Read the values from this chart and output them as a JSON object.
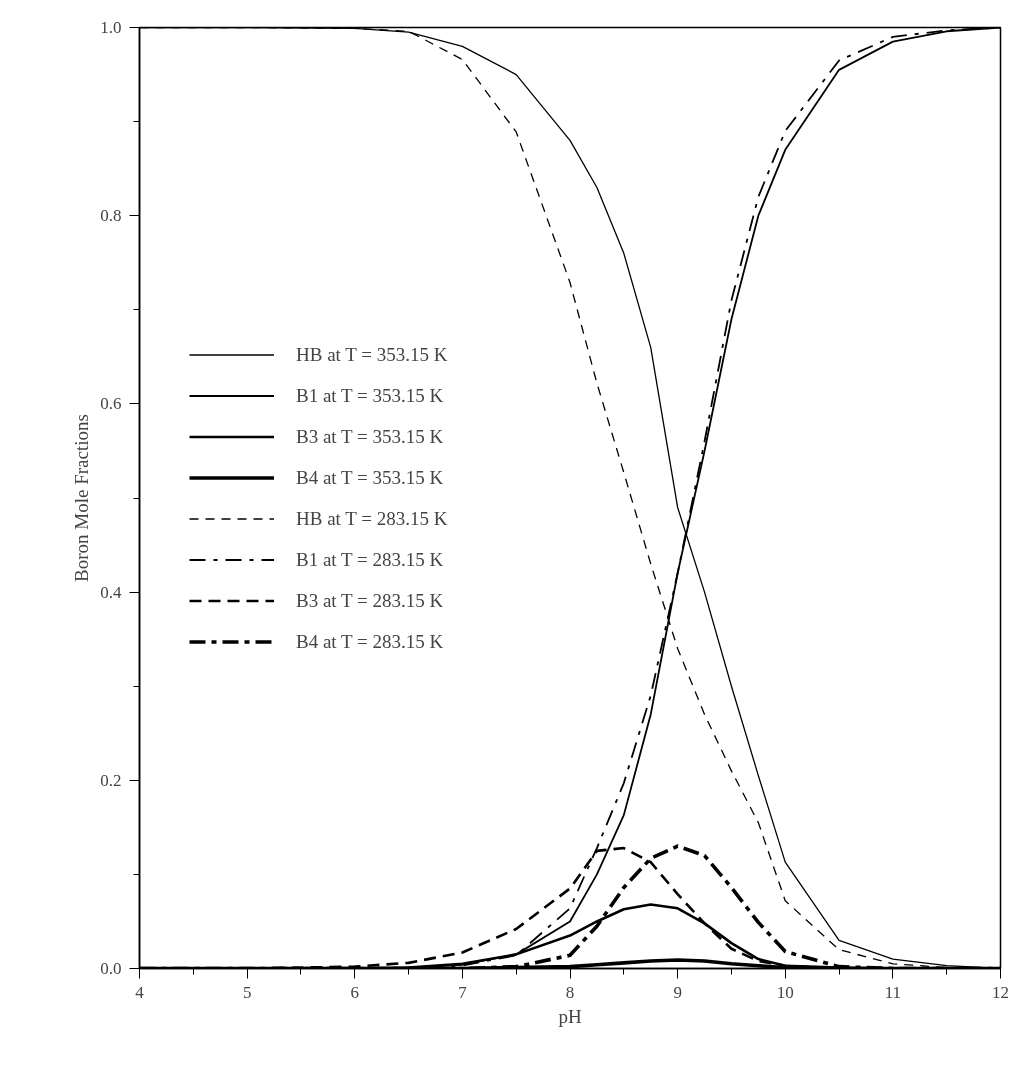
{
  "chart_data": {
    "type": "line",
    "xlabel": "pH",
    "ylabel": "Boron Mole Fractions",
    "x": [
      4,
      5,
      6,
      6.5,
      7,
      7.5,
      8,
      8.25,
      8.5,
      8.75,
      9,
      9.25,
      9.5,
      9.75,
      10,
      10.5,
      11,
      11.5,
      12
    ],
    "series": [
      {
        "name": "HB at T = 353.15 K",
        "color": "#000000",
        "line_style": "solid",
        "values": [
          1,
          1,
          0.999,
          0.995,
          0.98,
          0.95,
          0.88,
          0.83,
          0.76,
          0.66,
          0.49,
          0.4,
          0.3,
          0.205,
          0.113,
          0.03,
          0.01,
          0.003,
          0
        ]
      },
      {
        "name": "B1 at T = 353.15 K",
        "color": "#000000",
        "line_style": "solid",
        "values": [
          0,
          0,
          0,
          0.001,
          0.004,
          0.015,
          0.05,
          0.1,
          0.163,
          0.27,
          0.42,
          0.55,
          0.69,
          0.8,
          0.87,
          0.955,
          0.985,
          0.996,
          1
        ]
      },
      {
        "name": "B3 at T = 353.15 K",
        "color": "#000000",
        "line_style": "solid",
        "values": [
          0,
          0,
          0,
          0.001,
          0.005,
          0.015,
          0.035,
          0.05,
          0.063,
          0.068,
          0.064,
          0.048,
          0.027,
          0.01,
          0.003,
          0.001,
          0,
          0,
          0
        ]
      },
      {
        "name": "B4 at T = 353.15 K",
        "color": "#000000",
        "line_style": "solid",
        "values": [
          0,
          0,
          0,
          0,
          0,
          0.001,
          0.002,
          0.004,
          0.006,
          0.008,
          0.009,
          0.008,
          0.005,
          0.003,
          0.001,
          0,
          0,
          0,
          0
        ]
      },
      {
        "name": "HB at T = 283.15 K",
        "color": "#000000",
        "line_style": "dashed",
        "values": [
          1,
          1,
          0.999,
          0.996,
          0.966,
          0.889,
          0.729,
          0.622,
          0.527,
          0.43,
          0.34,
          0.27,
          0.21,
          0.155,
          0.072,
          0.02,
          0.005,
          0.001,
          0
        ]
      },
      {
        "name": "B1 at T = 283.15 K",
        "color": "#000000",
        "line_style": "dashed",
        "values": [
          0,
          0,
          0,
          0.001,
          0.003,
          0.014,
          0.064,
          0.128,
          0.197,
          0.29,
          0.42,
          0.56,
          0.71,
          0.82,
          0.89,
          0.965,
          0.99,
          0.997,
          1
        ]
      },
      {
        "name": "B3 at T = 283.15 K",
        "color": "#000000",
        "line_style": "dashed",
        "values": [
          0,
          0,
          0.002,
          0.006,
          0.017,
          0.042,
          0.085,
          0.125,
          0.128,
          0.113,
          0.079,
          0.048,
          0.021,
          0.008,
          0.003,
          0,
          0,
          0,
          0
        ]
      },
      {
        "name": "B4 at T = 283.15 K",
        "color": "#000000",
        "line_style": "dashed",
        "values": [
          0,
          0,
          0,
          0,
          0,
          0.002,
          0.014,
          0.045,
          0.086,
          0.117,
          0.13,
          0.12,
          0.086,
          0.049,
          0.018,
          0.002,
          0,
          0,
          0
        ]
      }
    ],
    "xlim": [
      4,
      12
    ],
    "xticks": [
      4,
      5,
      6,
      7,
      8,
      9,
      10,
      11,
      12
    ],
    "ylim": [
      0,
      1
    ],
    "yticks": [
      {
        "value": 0,
        "label": "0.0"
      },
      {
        "value": 0.2,
        "label": "0.2"
      },
      {
        "value": 0.4,
        "label": "0.4"
      },
      {
        "value": 0.6,
        "label": "0.6"
      },
      {
        "value": 0.8,
        "label": "0.8"
      },
      {
        "value": 1,
        "label": "1.0"
      }
    ],
    "grid": false,
    "legend": "left"
  }
}
